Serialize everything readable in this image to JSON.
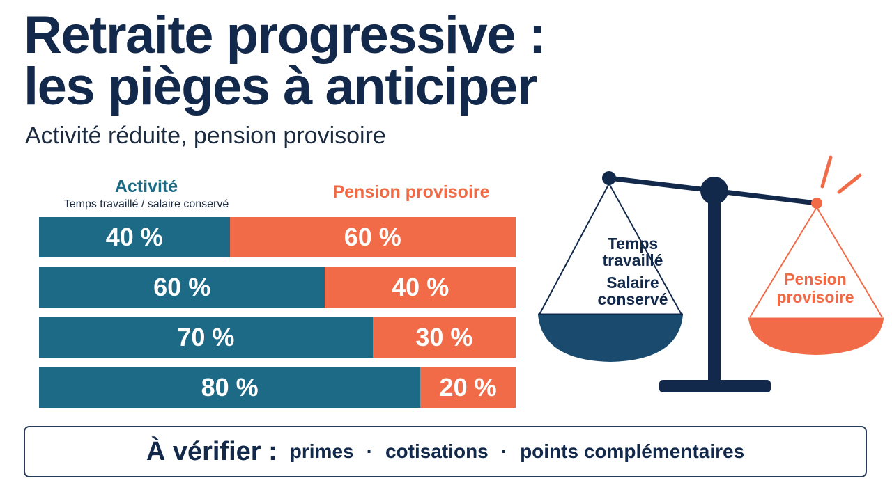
{
  "title_line1": "Retraite progressive :",
  "title_line2": "les pièges à anticiper",
  "subtitle": "Activité réduite, pension provisoire",
  "legend": {
    "activite": "Activité",
    "activite_sub": "Temps travaillé / salaire conservé",
    "pension": "Pension provisoire"
  },
  "colors": {
    "activite": "#1c6a85",
    "pension": "#f26b48",
    "navy": "#13294b"
  },
  "chart_data": {
    "type": "bar",
    "orientation": "horizontal",
    "stacked": true,
    "categories": [
      "",
      "",
      "",
      ""
    ],
    "series": [
      {
        "name": "Activité",
        "values": [
          40,
          60,
          70,
          80
        ]
      },
      {
        "name": "Pension provisoire",
        "values": [
          60,
          40,
          30,
          20
        ]
      }
    ],
    "data_labels_activite": [
      "40 %",
      "60 %",
      "70 %",
      "80 %"
    ],
    "data_labels_pension": [
      "60 %",
      "40 %",
      "30 %",
      "20 %"
    ],
    "xlim": [
      0,
      100
    ],
    "grid": false
  },
  "scale": {
    "left_label_line1": "Temps",
    "left_label_line2": "travaillé",
    "left_label_line3": "Salaire",
    "left_label_line4": "conservé",
    "right_label_line1": "Pension",
    "right_label_line2": "provisoire",
    "alert_icon": "alert-burst-icon"
  },
  "verify": {
    "lead": "À vérifier :",
    "items": [
      "primes",
      "cotisations",
      "points complémentaires"
    ],
    "separator": "·"
  }
}
